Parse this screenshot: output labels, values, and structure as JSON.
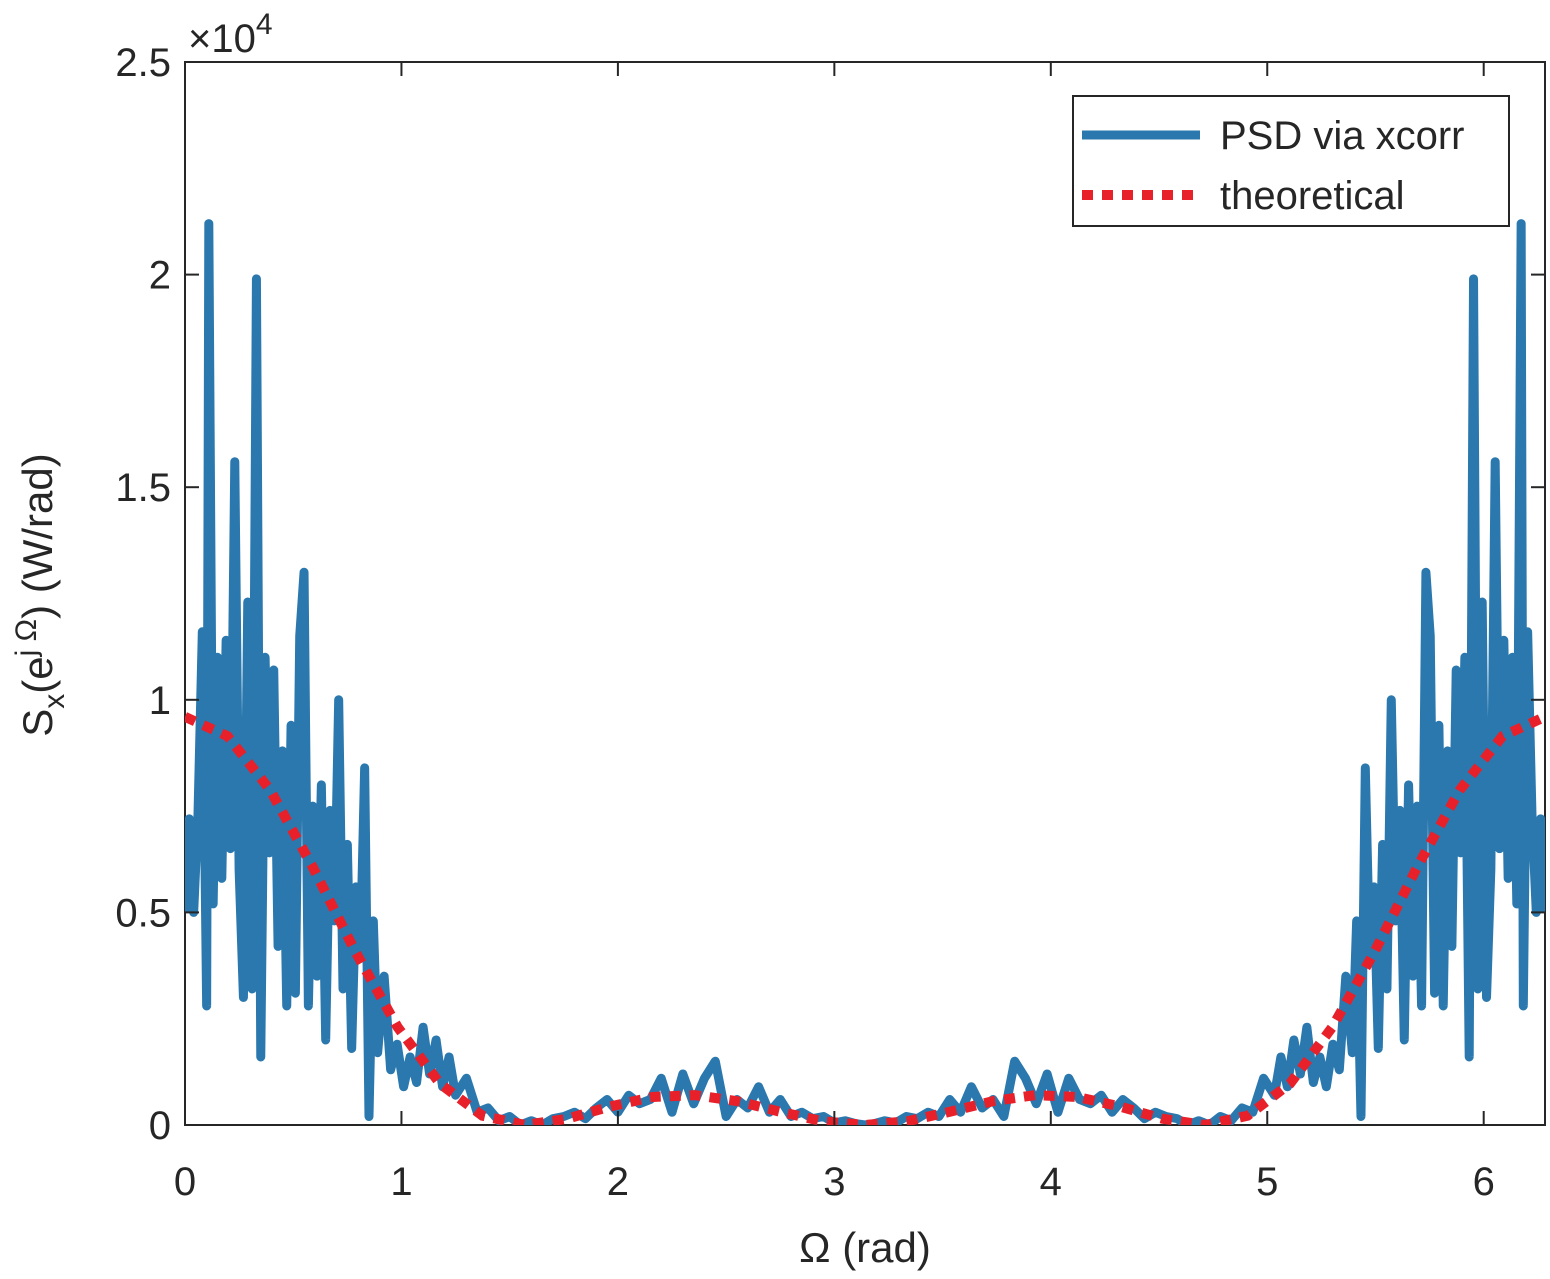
{
  "chart_data": {
    "type": "line",
    "xlabel": "Ω (rad)",
    "ylabel_parts": [
      "S",
      "x",
      "(e",
      "j Ω",
      ") (W/rad)"
    ],
    "y_multiplier": {
      "base": "×10",
      "exponent": "4"
    },
    "xlim": [
      0,
      6.2832
    ],
    "xticks": [
      0,
      1,
      2,
      3,
      4,
      5,
      6
    ],
    "ylim": [
      0,
      25000
    ],
    "yticks": [
      0,
      {
        "value": 5000,
        "label": "0.5"
      },
      {
        "value": 10000,
        "label": "1"
      },
      {
        "value": 15000,
        "label": "1.5"
      },
      {
        "value": 20000,
        "label": "2"
      },
      {
        "value": 25000,
        "label": "2.5"
      }
    ],
    "grid": false,
    "legend": "upper right",
    "series": [
      {
        "name": "PSD via xcorr",
        "color": "#2a78ae",
        "style": "solid",
        "x": [
          0,
          0.02,
          0.04,
          0.06,
          0.08,
          0.1,
          0.11,
          0.13,
          0.15,
          0.17,
          0.19,
          0.21,
          0.23,
          0.25,
          0.27,
          0.29,
          0.31,
          0.33,
          0.35,
          0.37,
          0.39,
          0.41,
          0.43,
          0.45,
          0.47,
          0.49,
          0.51,
          0.53,
          0.55,
          0.57,
          0.59,
          0.61,
          0.63,
          0.65,
          0.67,
          0.69,
          0.71,
          0.73,
          0.75,
          0.77,
          0.79,
          0.81,
          0.83,
          0.85,
          0.87,
          0.89,
          0.92,
          0.95,
          0.98,
          1.01,
          1.04,
          1.07,
          1.1,
          1.13,
          1.16,
          1.19,
          1.22,
          1.25,
          1.3,
          1.35,
          1.4,
          1.45,
          1.5,
          1.55,
          1.6,
          1.65,
          1.7,
          1.75,
          1.8,
          1.85,
          1.9,
          1.95,
          2.0,
          2.05,
          2.1,
          2.15,
          2.2,
          2.25,
          2.3,
          2.35,
          2.4,
          2.45,
          2.5,
          2.55,
          2.6,
          2.65,
          2.7,
          2.75,
          2.8,
          2.85,
          2.9,
          2.95,
          3.0,
          3.05,
          3.1,
          3.142,
          3.183,
          3.233,
          3.283,
          3.333,
          3.383,
          3.433,
          3.483,
          3.533,
          3.583,
          3.633,
          3.683,
          3.733,
          3.783,
          3.833,
          3.883,
          3.933,
          3.983,
          4.033,
          4.083,
          4.133,
          4.183,
          4.233,
          4.283,
          4.333,
          4.383,
          4.433,
          4.483,
          4.533,
          4.583,
          4.633,
          4.683,
          4.733,
          4.783,
          4.833,
          4.883,
          4.933,
          4.983,
          5.033,
          5.063,
          5.093,
          5.123,
          5.153,
          5.183,
          5.213,
          5.243,
          5.273,
          5.303,
          5.333,
          5.363,
          5.393,
          5.413,
          5.433,
          5.453,
          5.473,
          5.493,
          5.513,
          5.533,
          5.553,
          5.573,
          5.593,
          5.613,
          5.633,
          5.653,
          5.673,
          5.693,
          5.713,
          5.733,
          5.753,
          5.773,
          5.793,
          5.813,
          5.833,
          5.853,
          5.873,
          5.893,
          5.913,
          5.933,
          5.953,
          5.973,
          5.993,
          6.013,
          6.033,
          6.053,
          6.073,
          6.093,
          6.113,
          6.133,
          6.153,
          6.173,
          6.183,
          6.203,
          6.223,
          6.243,
          6.263,
          6.283
        ],
        "values": [
          5000,
          7200,
          5000,
          7300,
          11600,
          2800,
          21200,
          5200,
          11000,
          5800,
          11400,
          6500,
          15600,
          6000,
          3000,
          12300,
          3200,
          19900,
          1600,
          11000,
          6400,
          10700,
          4200,
          8800,
          2800,
          9400,
          3100,
          11500,
          13000,
          2800,
          7500,
          3500,
          8000,
          2000,
          7400,
          4800,
          10000,
          3200,
          6600,
          1800,
          5600,
          4000,
          8400,
          200,
          4800,
          1700,
          3500,
          1300,
          1900,
          900,
          1600,
          1000,
          2300,
          1200,
          2000,
          900,
          1600,
          700,
          1100,
          300,
          400,
          100,
          200,
          0,
          100,
          0,
          150,
          200,
          300,
          150,
          400,
          600,
          300,
          700,
          500,
          600,
          1100,
          300,
          1200,
          500,
          1100,
          1500,
          200,
          600,
          400,
          900,
          300,
          600,
          200,
          300,
          150,
          200,
          50,
          100,
          30,
          0,
          30,
          100,
          50,
          200,
          150,
          300,
          200,
          600,
          300,
          900,
          400,
          600,
          200,
          1500,
          1100,
          500,
          1200,
          300,
          1100,
          600,
          500,
          700,
          300,
          600,
          400,
          150,
          300,
          200,
          150,
          0,
          100,
          0,
          200,
          100,
          400,
          300,
          1100,
          700,
          1600,
          900,
          2000,
          1200,
          2300,
          1000,
          1600,
          900,
          1900,
          1300,
          3500,
          1700,
          4800,
          200,
          8400,
          4000,
          5600,
          1800,
          6600,
          3200,
          10000,
          4800,
          7400,
          2000,
          8000,
          3500,
          7500,
          2800,
          13000,
          11500,
          3100,
          9400,
          2800,
          8800,
          4200,
          10700,
          6400,
          11000,
          1600,
          19900,
          3200,
          12300,
          3000,
          6000,
          15600,
          6500,
          11400,
          5800,
          11000,
          5200,
          21200,
          2800,
          11600,
          7300,
          5000,
          7200,
          5000
        ]
      },
      {
        "name": "theoretical",
        "color": "#e8202a",
        "style": "dotted",
        "x": [
          0,
          0.196,
          0.393,
          0.589,
          0.785,
          0.982,
          1.178,
          1.374,
          1.571,
          1.767,
          1.963,
          2.16,
          2.356,
          2.553,
          2.749,
          2.945,
          3.142,
          3.338,
          3.534,
          3.731,
          3.927,
          4.123,
          4.32,
          4.516,
          4.712,
          4.909,
          5.105,
          5.301,
          5.498,
          5.694,
          5.89,
          6.087,
          6.283
        ],
        "values": [
          9600,
          9146,
          7882,
          6078,
          4097,
          2305,
          972,
          218,
          0,
          147,
          434,
          658,
          703,
          559,
          312,
          89,
          0,
          89,
          312,
          559,
          703,
          658,
          434,
          147,
          0,
          218,
          972,
          2305,
          4097,
          6078,
          7882,
          9146,
          9600
        ]
      }
    ]
  }
}
